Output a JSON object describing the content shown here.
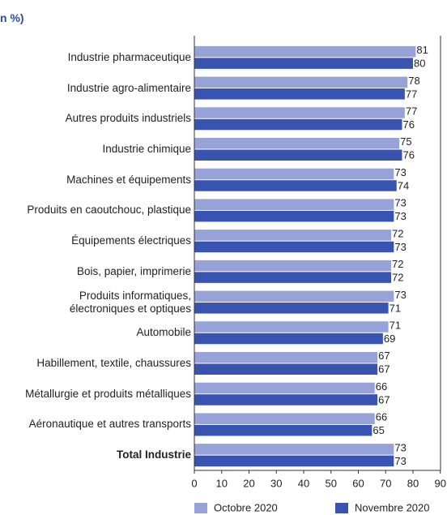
{
  "chart_data": {
    "type": "bar",
    "orientation": "horizontal",
    "subtitle": "n %)",
    "categories": [
      "Industrie pharmaceutique",
      "Industrie agro-alimentaire",
      "Autres produits industriels",
      "Industrie chimique",
      "Machines et équipements",
      "Produits en caoutchouc, plastique",
      "Équipements électriques",
      "Bois, papier, imprimerie",
      "Produits informatiques,\nélectroniques et optiques",
      "Automobile",
      "Habillement, textile, chaussures",
      "Métallurgie et produits métalliques",
      "Aéronautique et autres transports",
      "Total Industrie"
    ],
    "series": [
      {
        "name": "Octobre 2020",
        "color": "#97a3d8",
        "values": [
          81,
          78,
          77,
          75,
          73,
          73,
          72,
          72,
          73,
          71,
          67,
          66,
          66,
          73
        ]
      },
      {
        "name": "Novembre 2020",
        "color": "#3953b0",
        "values": [
          80,
          77,
          76,
          76,
          74,
          73,
          73,
          72,
          71,
          69,
          67,
          67,
          65,
          73
        ]
      }
    ],
    "xlim": [
      0,
      90
    ],
    "xticks": [
      0,
      10,
      20,
      30,
      40,
      50,
      60,
      70,
      80,
      90
    ],
    "legend": "bottom"
  }
}
